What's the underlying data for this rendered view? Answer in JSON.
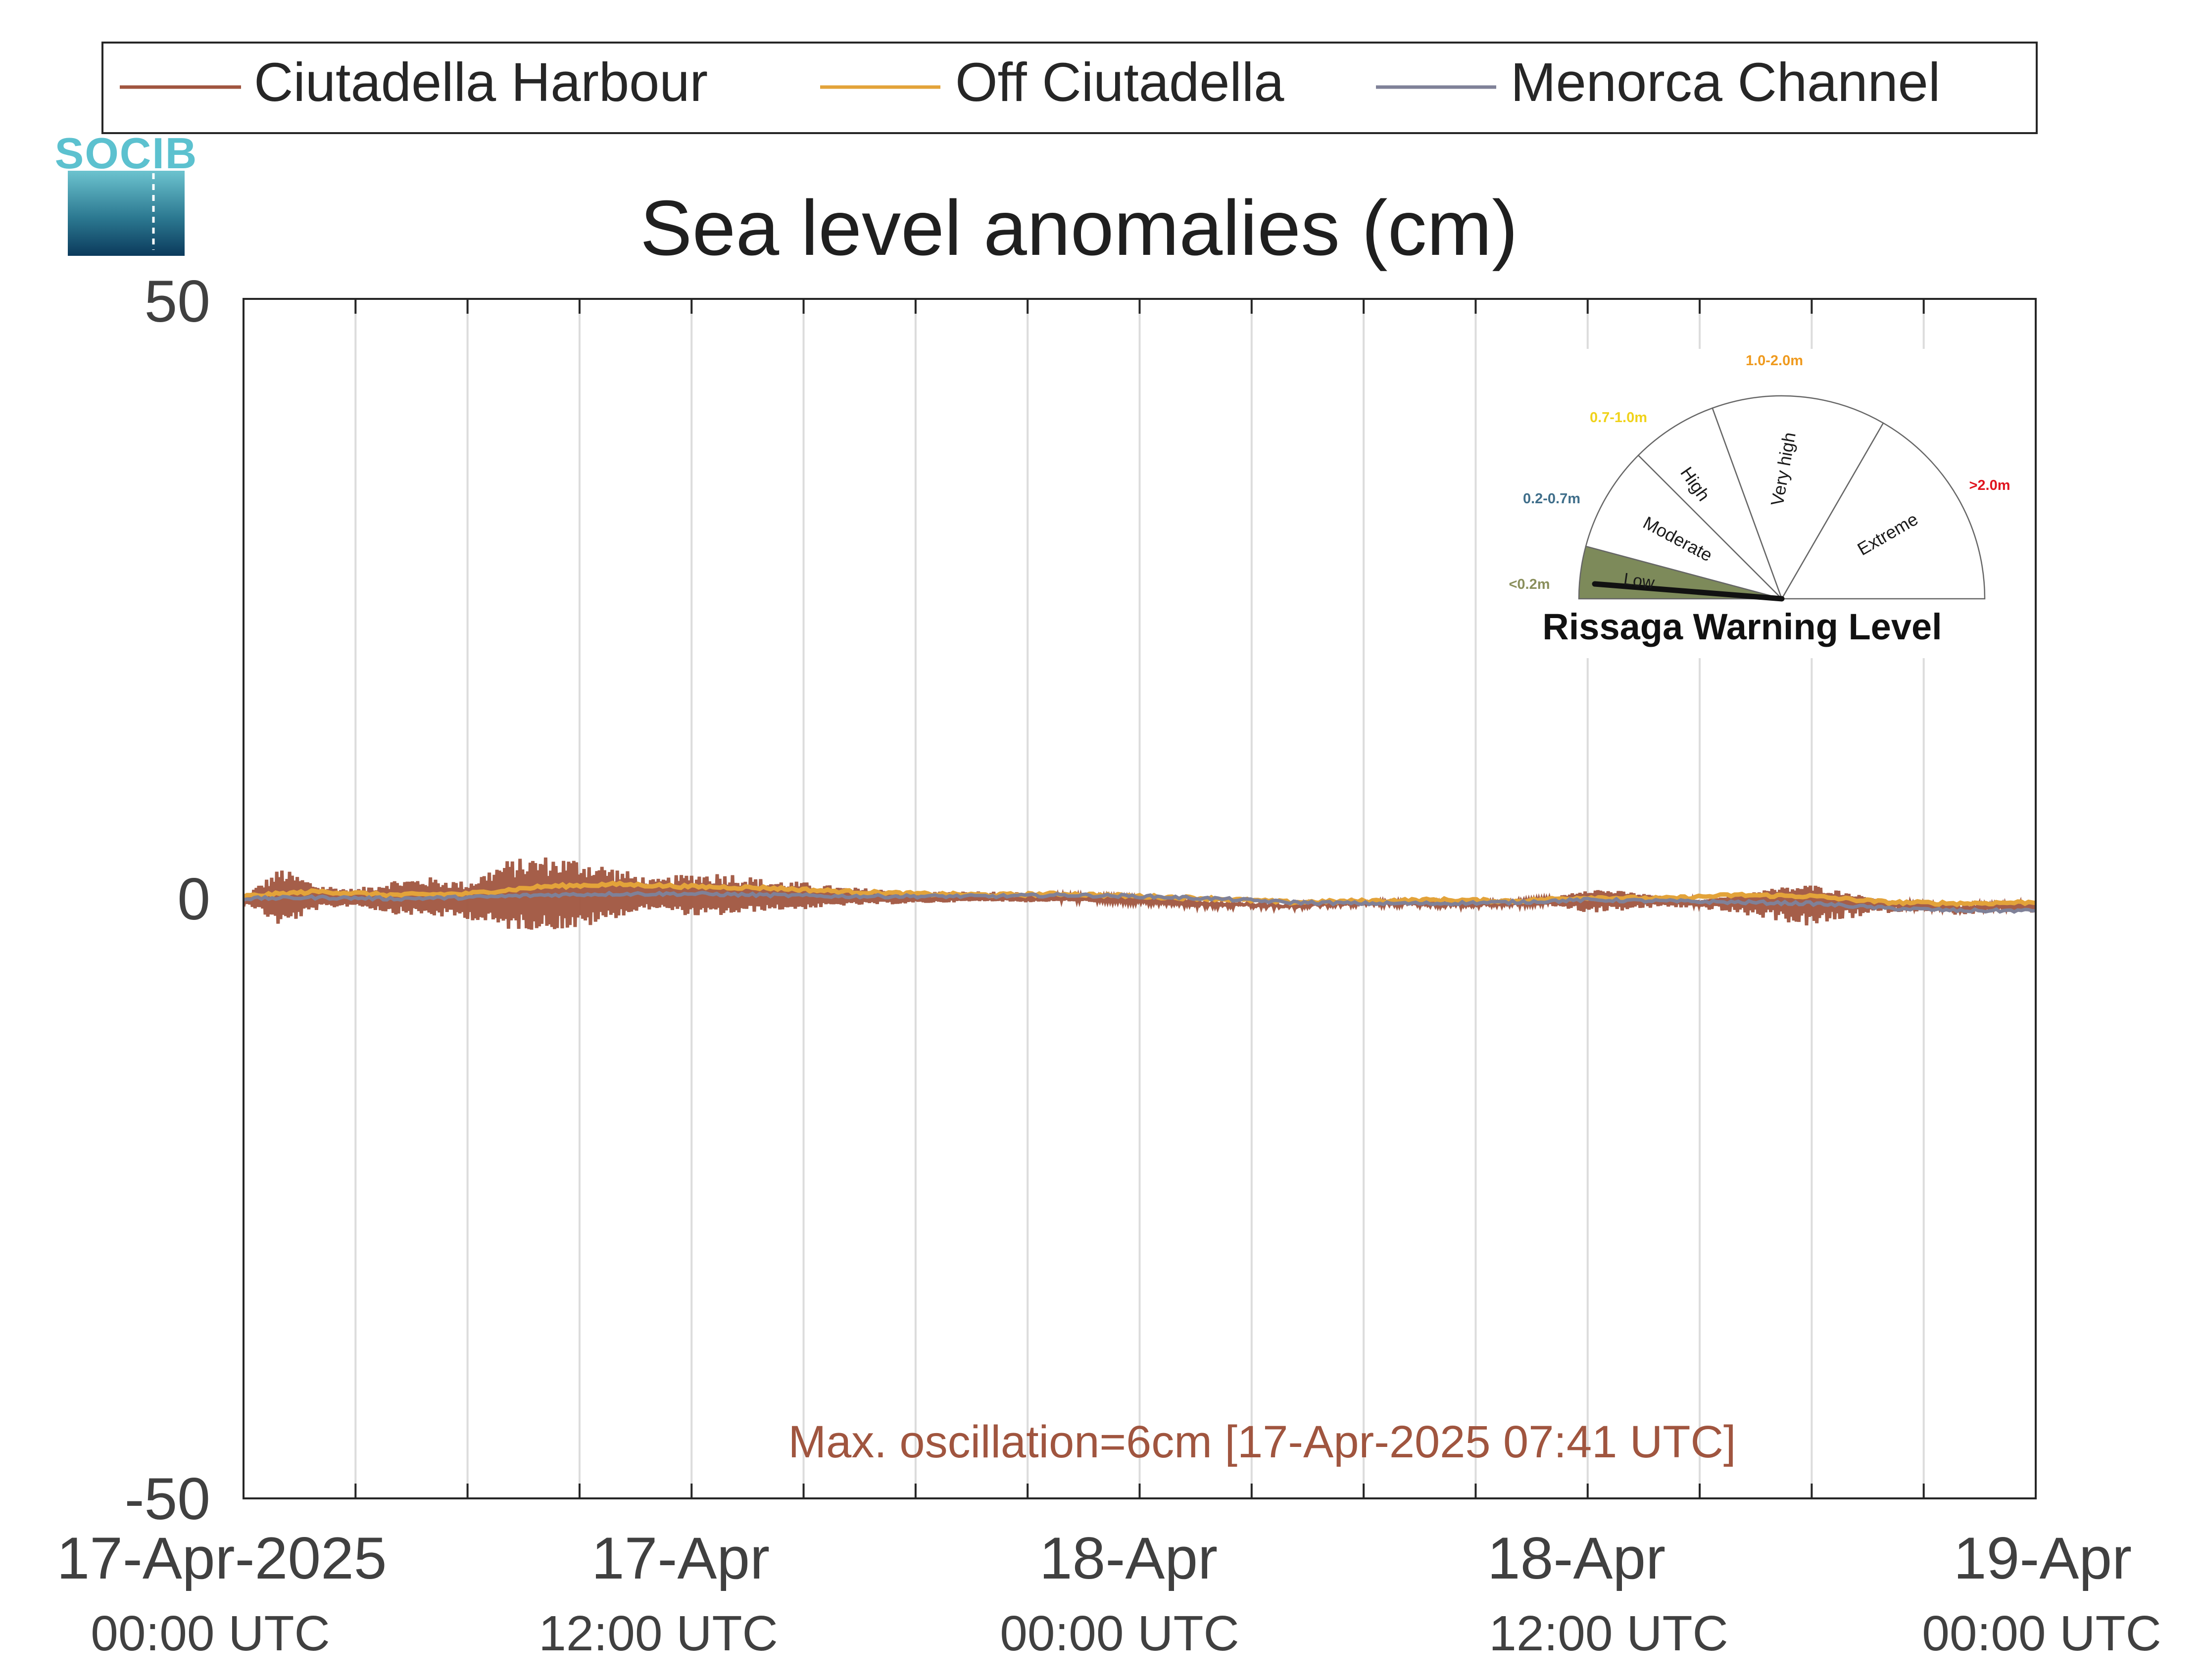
{
  "logo": {
    "text": "SOCIB",
    "icon": "socib-logo-icon"
  },
  "legend": [
    {
      "label": "Ciutadella Harbour",
      "color": "#a0553f"
    },
    {
      "label": "Off Ciutadella",
      "color": "#e3a33a"
    },
    {
      "label": "Menorca Channel",
      "color": "#7f8198"
    }
  ],
  "chart_data": {
    "type": "line",
    "title": "Sea level anomalies (cm)",
    "xlabel": "",
    "ylabel": "",
    "ylim": [
      -50,
      50
    ],
    "yticks": [
      50,
      0,
      -50
    ],
    "x_range": [
      "2025-04-17 00:00",
      "2025-04-19 00:00"
    ],
    "x_gridlines_hours": 3,
    "xticks": [
      {
        "x": "2025-04-17 00:00",
        "line1": "17-Apr-2025",
        "line2": "00:00 UTC"
      },
      {
        "x": "2025-04-17 12:00",
        "line1": "17-Apr",
        "line2": "12:00 UTC"
      },
      {
        "x": "2025-04-18 00:00",
        "line1": "18-Apr",
        "line2": "00:00 UTC"
      },
      {
        "x": "2025-04-18 12:00",
        "line1": "18-Apr",
        "line2": "12:00 UTC"
      },
      {
        "x": "2025-04-19 00:00",
        "line1": "19-Apr",
        "line2": "00:00 UTC"
      }
    ],
    "grid": "vertical",
    "legend_position": "top",
    "series": [
      {
        "name": "Ciutadella Harbour",
        "color": "#a0553f",
        "envelope_hours": [
          0,
          1,
          2,
          3,
          4,
          5,
          6,
          7,
          8,
          9,
          10,
          11,
          12,
          13,
          14,
          15,
          16,
          17,
          18,
          19,
          20,
          21,
          22,
          23,
          24,
          25,
          26,
          27,
          28,
          29,
          30,
          31,
          32,
          33,
          34,
          35,
          36,
          37,
          38,
          39,
          40,
          41,
          42,
          43,
          44,
          45,
          46,
          47,
          48
        ],
        "envelope_upper": [
          0.2,
          2.6,
          1.2,
          0.8,
          1.6,
          1.8,
          1.4,
          3.2,
          3.6,
          3.4,
          2.6,
          1.6,
          2.2,
          2.2,
          1.6,
          1.4,
          1.0,
          0.8,
          0.6,
          0.6,
          0.6,
          0.5,
          0.4,
          0.2,
          0.0,
          -0.3,
          -0.5,
          -0.6,
          -0.7,
          -0.5,
          -0.4,
          -0.3,
          -0.5,
          -0.5,
          -0.3,
          0.0,
          0.9,
          0.6,
          0.2,
          -0.2,
          0.4,
          0.9,
          1.2,
          0.5,
          -0.2,
          -0.5,
          -0.9,
          -0.5,
          -0.6
        ],
        "envelope_lower": [
          -0.2,
          -2.4,
          -0.9,
          -0.6,
          -1.3,
          -1.5,
          -1.7,
          -2.6,
          -2.6,
          -2.6,
          -1.6,
          -0.8,
          -1.5,
          -1.4,
          -1.0,
          -0.9,
          -0.6,
          -0.5,
          -0.4,
          -0.3,
          -0.2,
          -0.3,
          -0.2,
          -0.3,
          -0.4,
          -0.6,
          -0.8,
          -0.8,
          -0.9,
          -0.7,
          -0.6,
          -0.6,
          -0.7,
          -0.7,
          -0.6,
          -0.6,
          -1.2,
          -1.0,
          -0.7,
          -0.8,
          -1.3,
          -1.8,
          -2.4,
          -1.7,
          -1.2,
          -1.0,
          -1.4,
          -1.1,
          -1.2
        ]
      },
      {
        "name": "Off Ciutadella",
        "color": "#e3a33a",
        "x_hours": [
          0,
          2,
          4,
          6,
          8,
          10,
          12,
          14,
          16,
          18,
          20,
          22,
          24,
          26,
          28,
          30,
          32,
          34,
          36,
          38,
          40,
          42,
          44,
          46,
          48
        ],
        "values": [
          0.2,
          0.6,
          0.3,
          0.4,
          1.0,
          1.2,
          1.0,
          0.9,
          0.6,
          0.4,
          0.3,
          0.4,
          0.2,
          0.0,
          -0.3,
          -0.2,
          -0.1,
          -0.2,
          0.1,
          0.0,
          0.3,
          0.2,
          -0.3,
          -0.4,
          -0.3
        ]
      },
      {
        "name": "Menorca Channel",
        "color": "#7f8198",
        "x_hours": [
          0,
          2,
          4,
          6,
          8,
          10,
          12,
          14,
          16,
          18,
          20,
          22,
          24,
          26,
          28,
          30,
          32,
          34,
          36,
          38,
          40,
          42,
          44,
          46,
          48
        ],
        "values": [
          0.0,
          0.1,
          0.0,
          0.1,
          0.3,
          0.4,
          0.4,
          0.3,
          0.2,
          0.2,
          0.2,
          0.3,
          0.2,
          0.0,
          -0.3,
          -0.4,
          -0.4,
          -0.3,
          -0.1,
          -0.2,
          -0.3,
          -0.4,
          -0.8,
          -1.0,
          -1.0
        ]
      }
    ],
    "annotation": {
      "text": "Max. oscillation=6cm [17-Apr-2025 07:41 UTC]",
      "color": "#a0553f"
    }
  },
  "warning_gauge": {
    "title": "Rissaga Warning Level",
    "needle_level": "Low",
    "levels": [
      {
        "name": "Low",
        "range": "<0.2m",
        "range_color": "#8a8f5c",
        "fill": "#7d8a5a"
      },
      {
        "name": "Moderate",
        "range": "0.2-0.7m",
        "range_color": "#3f6e8a",
        "fill": "#ffffff"
      },
      {
        "name": "High",
        "range": "0.7-1.0m",
        "range_color": "#f0d21a",
        "fill": "#ffffff"
      },
      {
        "name": "Very high",
        "range": "1.0-2.0m",
        "range_color": "#ef9a1e",
        "fill": "#ffffff"
      },
      {
        "name": "Extreme",
        "range": ">2.0m",
        "range_color": "#e0141e",
        "fill": "#ffffff"
      }
    ]
  }
}
